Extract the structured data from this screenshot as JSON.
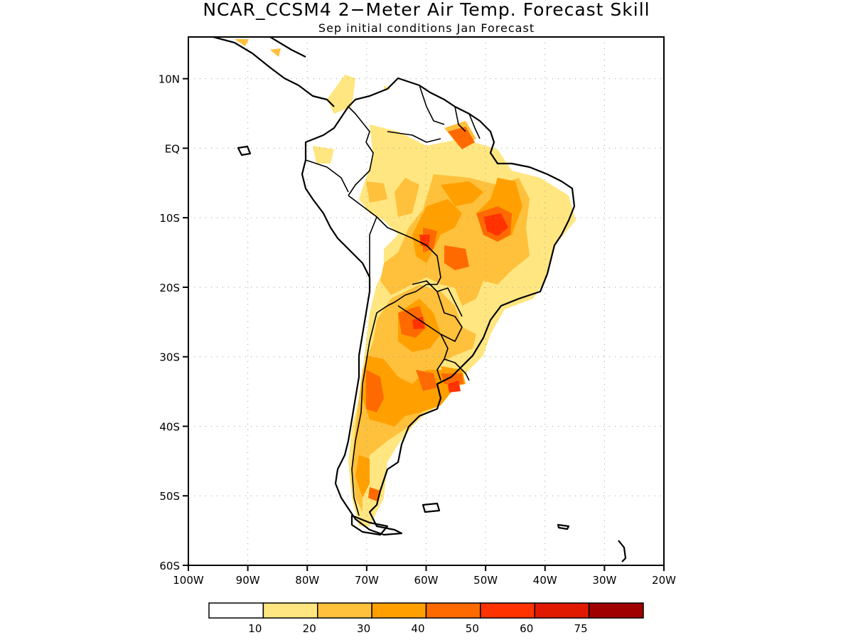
{
  "title": "NCAR_CCSM4 2−Meter Air Temp. Forecast Skill",
  "subtitle": "Sep initial conditions   Jan Forecast",
  "map": {
    "lon_range": [
      -100,
      -20
    ],
    "lat_range": [
      -60,
      16
    ],
    "lat_ticks": [
      {
        "value": 10,
        "label": "10N"
      },
      {
        "value": 0,
        "label": "EQ"
      },
      {
        "value": -10,
        "label": "10S"
      },
      {
        "value": -20,
        "label": "20S"
      },
      {
        "value": -30,
        "label": "30S"
      },
      {
        "value": -40,
        "label": "40S"
      },
      {
        "value": -50,
        "label": "50S"
      },
      {
        "value": -60,
        "label": "60S"
      }
    ],
    "lon_ticks": [
      {
        "value": -100,
        "label": "100W"
      },
      {
        "value": -90,
        "label": "90W"
      },
      {
        "value": -80,
        "label": "80W"
      },
      {
        "value": -70,
        "label": "70W"
      },
      {
        "value": -60,
        "label": "60W"
      },
      {
        "value": -50,
        "label": "50W"
      },
      {
        "value": -40,
        "label": "40W"
      },
      {
        "value": -30,
        "label": "30W"
      },
      {
        "value": -20,
        "label": "20W"
      }
    ],
    "grid": true
  },
  "legend": {
    "colors": [
      "#ffffff",
      "#ffe680",
      "#ffc03c",
      "#ffa000",
      "#ff6a00",
      "#ff3200",
      "#e01a00",
      "#a00000"
    ],
    "labels": [
      "10",
      "20",
      "30",
      "40",
      "50",
      "60",
      "75"
    ]
  },
  "colors": {
    "skill_10_20": "#ffe680",
    "skill_20_30": "#ffc03c",
    "skill_30_40": "#ffa000",
    "skill_40_50": "#ff6a00",
    "skill_50_60": "#ff3200"
  }
}
